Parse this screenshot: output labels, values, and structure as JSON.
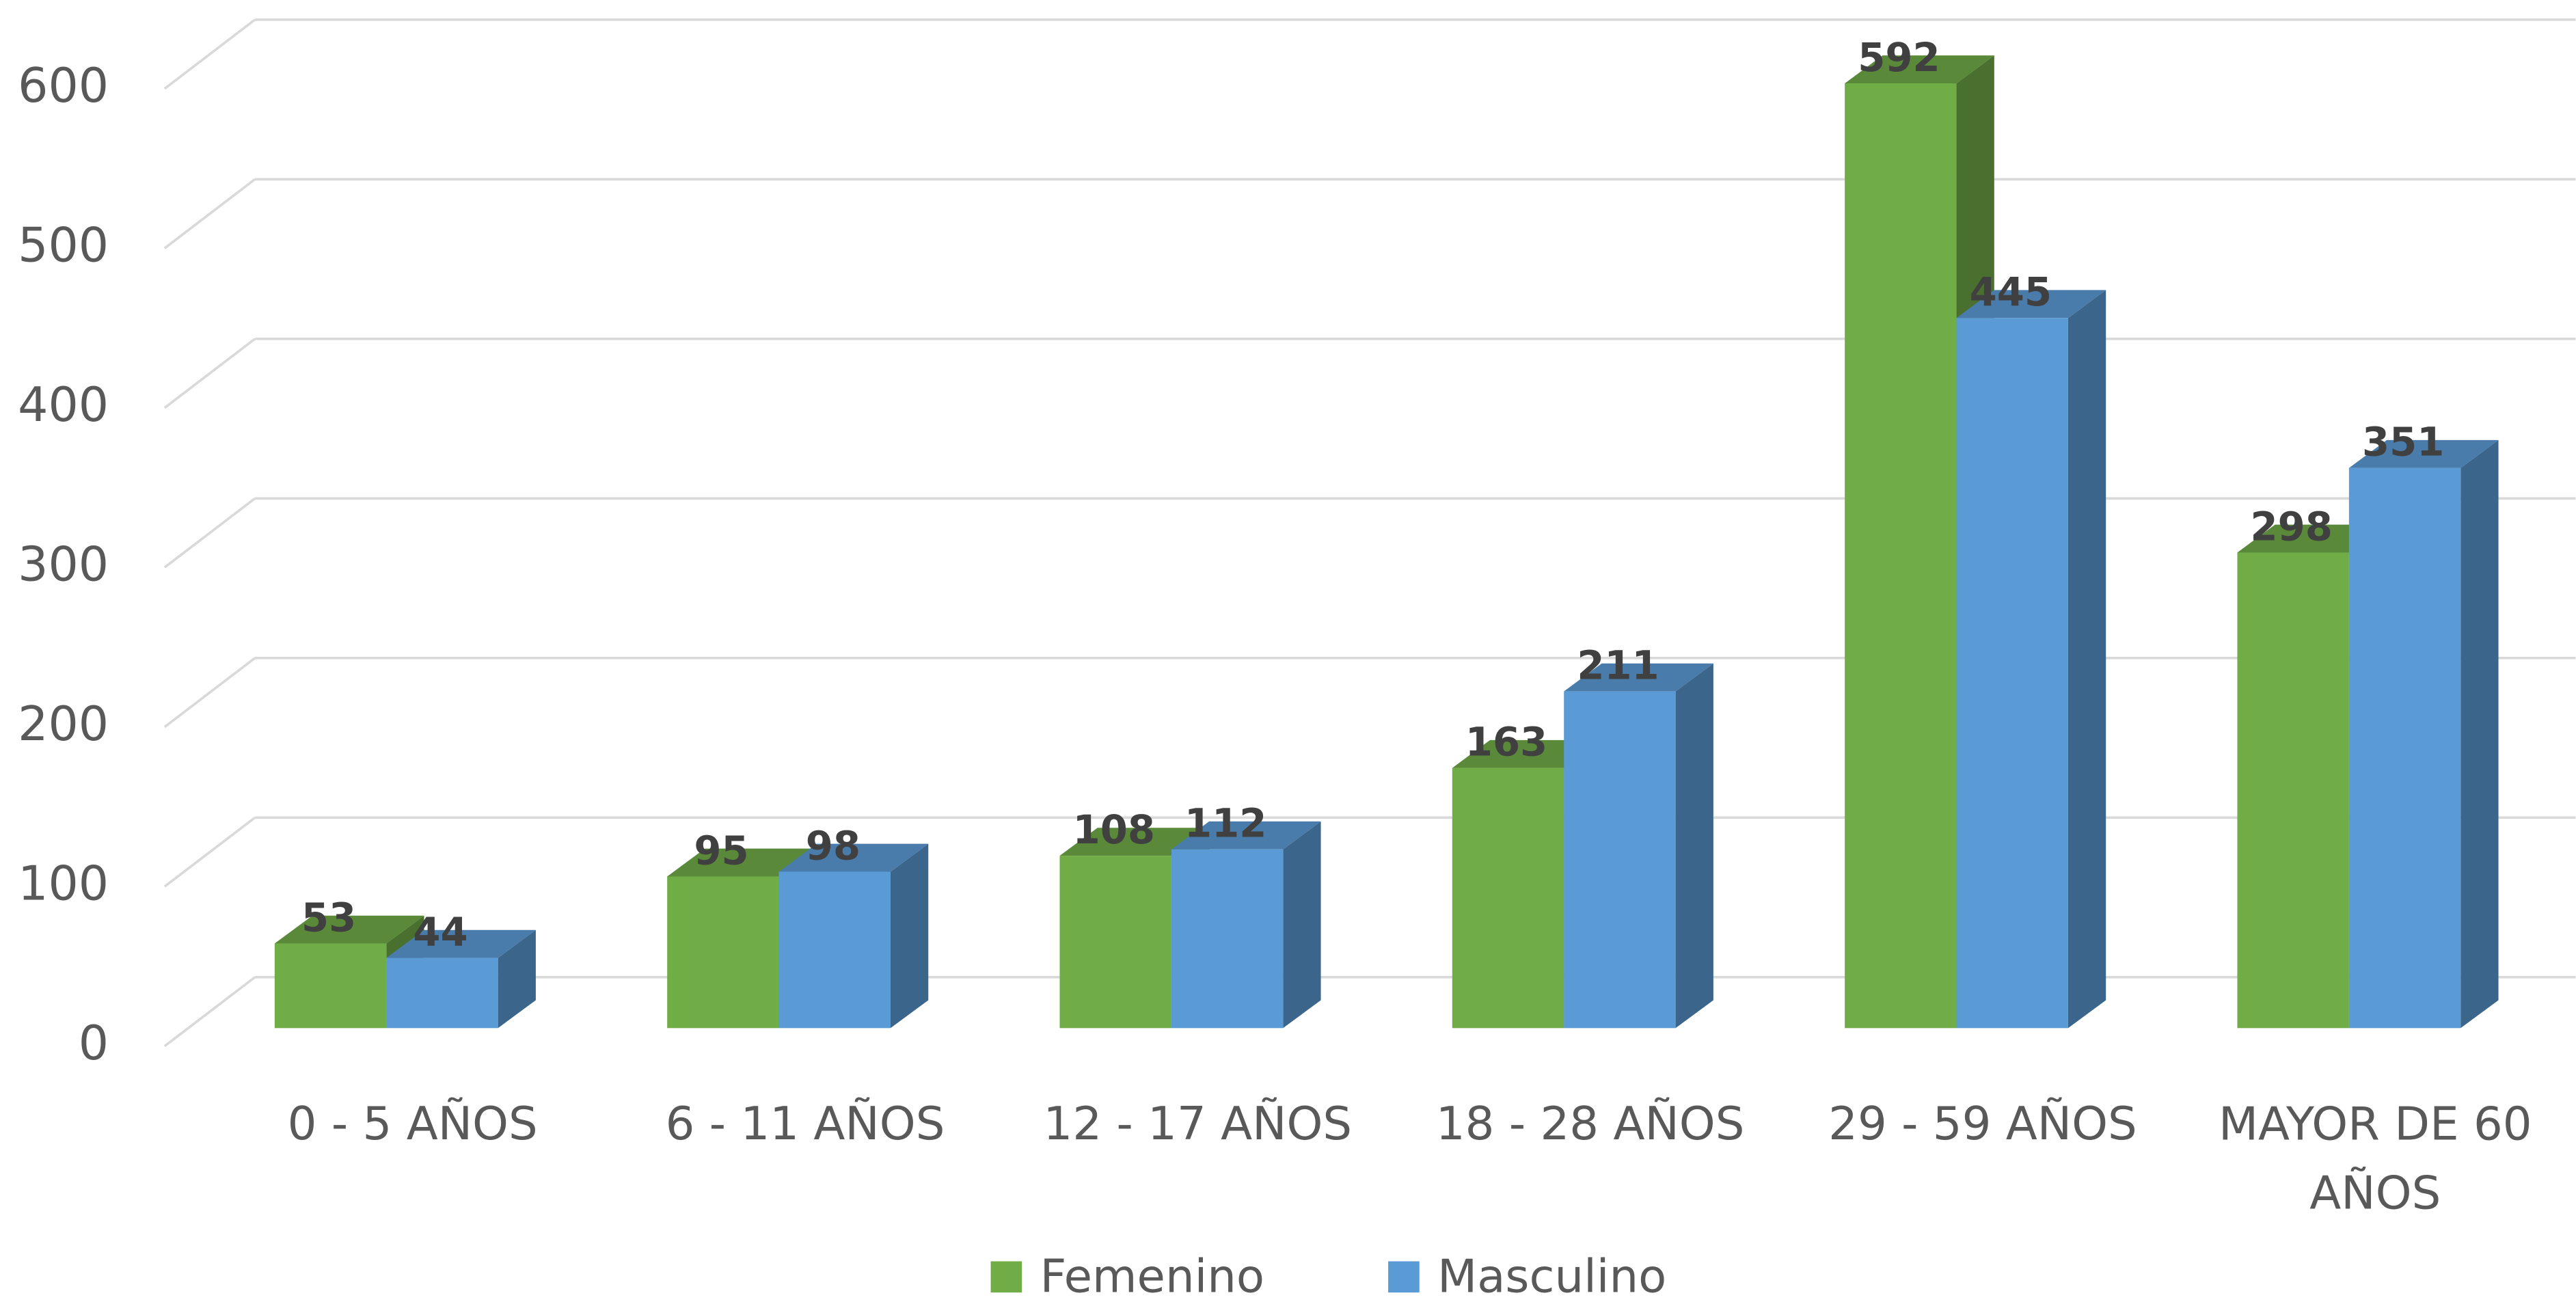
{
  "chart_data": {
    "type": "bar3d",
    "categories": [
      "0 - 5 AÑOS",
      "6 - 11 AÑOS",
      "12 - 17 AÑOS",
      "18 - 28 AÑOS",
      "29 - 59 AÑOS",
      "MAYOR DE 60 AÑOS"
    ],
    "series": [
      {
        "name": "Femenino",
        "color": "#70ad47",
        "values": [
          53,
          95,
          108,
          163,
          592,
          298
        ]
      },
      {
        "name": "Masculino",
        "color": "#5b9bd5",
        "values": [
          44,
          98,
          112,
          211,
          445,
          351
        ]
      }
    ],
    "ylim": [
      0,
      600
    ],
    "yticks": [
      0,
      100,
      200,
      300,
      400,
      500,
      600
    ],
    "grid": true,
    "legend": "bottom"
  }
}
